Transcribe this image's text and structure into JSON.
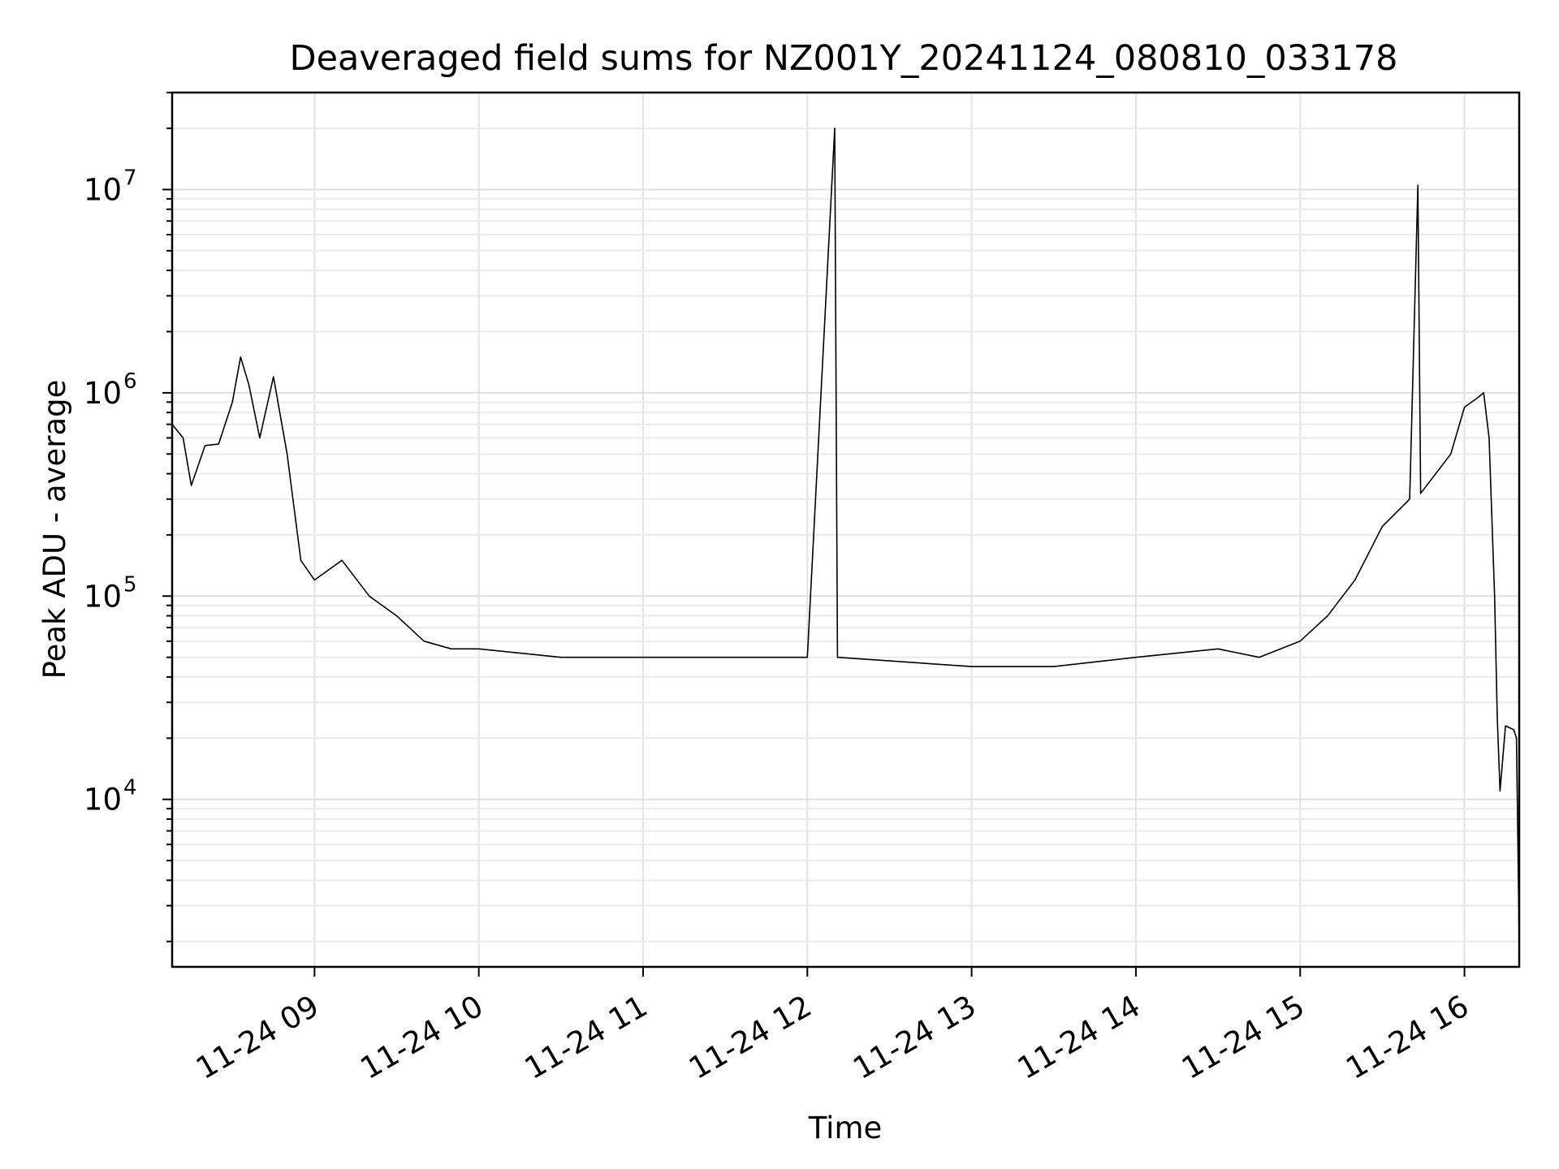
{
  "chart_data": {
    "type": "line",
    "title": "Deaveraged field sums for NZ001Y_20241124_080810_033178",
    "xlabel": "Time",
    "ylabel": "Peak ADU - average",
    "yscale": "log",
    "ylim": [
      1500,
      30000000
    ],
    "xlim": [
      "11-24 08:08",
      "11-24 16:20"
    ],
    "x_ticks": [
      "11-24 09",
      "11-24 10",
      "11-24 11",
      "11-24 12",
      "11-24 13",
      "11-24 14",
      "11-24 15",
      "11-24 16"
    ],
    "y_ticks": [
      {
        "base": "10",
        "exp": "4"
      },
      {
        "base": "10",
        "exp": "5"
      },
      {
        "base": "10",
        "exp": "6"
      },
      {
        "base": "10",
        "exp": "7"
      }
    ],
    "grid": true,
    "line_color": "#000000",
    "series": [
      {
        "name": "",
        "points": [
          [
            "11-24 08:08",
            700000
          ],
          [
            "11-24 08:12",
            600000
          ],
          [
            "11-24 08:15",
            350000
          ],
          [
            "11-24 08:20",
            550000
          ],
          [
            "11-24 08:25",
            560000
          ],
          [
            "11-24 08:30",
            900000
          ],
          [
            "11-24 08:33",
            1500000
          ],
          [
            "11-24 08:36",
            1100000
          ],
          [
            "11-24 08:40",
            600000
          ],
          [
            "11-24 08:45",
            1200000
          ],
          [
            "11-24 08:50",
            500000
          ],
          [
            "11-24 08:55",
            150000
          ],
          [
            "11-24 09:00",
            120000
          ],
          [
            "11-24 09:10",
            150000
          ],
          [
            "11-24 09:20",
            100000
          ],
          [
            "11-24 09:30",
            80000
          ],
          [
            "11-24 09:40",
            60000
          ],
          [
            "11-24 09:50",
            55000
          ],
          [
            "11-24 10:00",
            55000
          ],
          [
            "11-24 10:30",
            50000
          ],
          [
            "11-24 11:00",
            50000
          ],
          [
            "11-24 11:30",
            50000
          ],
          [
            "11-24 12:00",
            50000
          ],
          [
            "11-24 12:10",
            20000000
          ],
          [
            "11-24 12:11",
            50000
          ],
          [
            "11-24 12:30",
            48000
          ],
          [
            "11-24 13:00",
            45000
          ],
          [
            "11-24 13:30",
            45000
          ],
          [
            "11-24 14:00",
            50000
          ],
          [
            "11-24 14:30",
            55000
          ],
          [
            "11-24 14:45",
            50000
          ],
          [
            "11-24 15:00",
            60000
          ],
          [
            "11-24 15:10",
            80000
          ],
          [
            "11-24 15:20",
            120000
          ],
          [
            "11-24 15:30",
            220000
          ],
          [
            "11-24 15:40",
            300000
          ],
          [
            "11-24 15:43",
            10500000
          ],
          [
            "11-24 15:44",
            320000
          ],
          [
            "11-24 15:55",
            500000
          ],
          [
            "11-24 16:00",
            850000
          ],
          [
            "11-24 16:05",
            950000
          ],
          [
            "11-24 16:07",
            1000000
          ],
          [
            "11-24 16:09",
            600000
          ],
          [
            "11-24 16:11",
            100000
          ],
          [
            "11-24 16:12",
            25000
          ],
          [
            "11-24 16:13",
            11000
          ],
          [
            "11-24 16:15",
            23000
          ],
          [
            "11-24 16:18",
            22000
          ],
          [
            "11-24 16:19",
            20000
          ],
          [
            "11-24 16:20",
            2000
          ]
        ]
      }
    ]
  }
}
